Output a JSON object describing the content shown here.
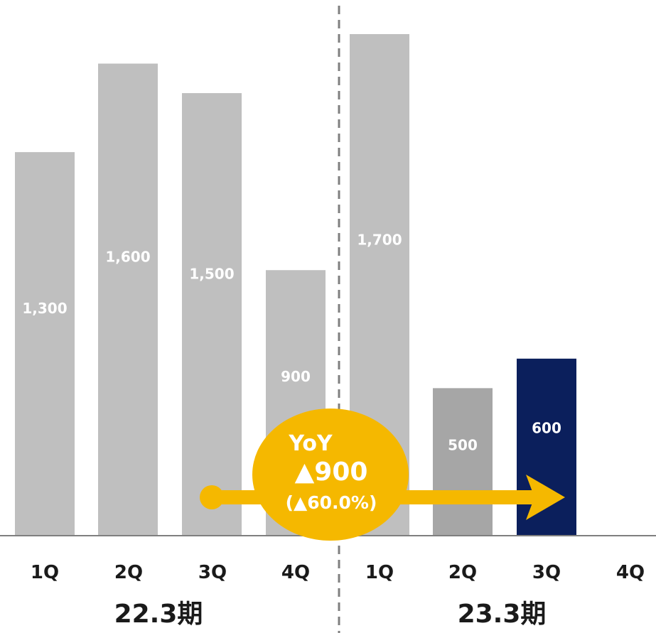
{
  "chart_data": {
    "type": "bar",
    "periods": [
      {
        "label": "22.3期",
        "categories": [
          "1Q",
          "2Q",
          "3Q",
          "4Q"
        ]
      },
      {
        "label": "23.3期",
        "categories": [
          "1Q",
          "2Q",
          "3Q",
          "4Q"
        ]
      }
    ],
    "bars": [
      {
        "period": "22.3期",
        "category": "1Q",
        "value": 1300,
        "label": "1,300",
        "color": "#bfbfbf"
      },
      {
        "period": "22.3期",
        "category": "2Q",
        "value": 1600,
        "label": "1,600",
        "color": "#bfbfbf"
      },
      {
        "period": "22.3期",
        "category": "3Q",
        "value": 1500,
        "label": "1,500",
        "color": "#bfbfbf"
      },
      {
        "period": "22.3期",
        "category": "4Q",
        "value": 900,
        "label": "900",
        "color": "#bfbfbf"
      },
      {
        "period": "23.3期",
        "category": "1Q",
        "value": 1700,
        "label": "1,700",
        "color": "#bfbfbf"
      },
      {
        "period": "23.3期",
        "category": "2Q",
        "value": 500,
        "label": "500",
        "color": "#a6a6a6"
      },
      {
        "period": "23.3期",
        "category": "3Q",
        "value": 600,
        "label": "600",
        "color": "#0b1f5c"
      },
      {
        "period": "23.3期",
        "category": "4Q",
        "value": null,
        "label": "",
        "color": "#bfbfbf"
      }
    ],
    "ylim": [
      0,
      1700
    ],
    "annotation": {
      "title": "YoY",
      "value": "▲900",
      "percent": "(▲60.0%)",
      "from": "22.3期 3Q",
      "to": "23.3期 3Q",
      "color": "#f5b800"
    },
    "colors": {
      "bar_default": "#bfbfbf",
      "bar_2q": "#a6a6a6",
      "bar_highlight": "#0b1f5c",
      "label_light": "#ffffff",
      "axis": "#7f7f7f",
      "divider": "#7f7f7f",
      "annotation": "#f5b800"
    }
  }
}
